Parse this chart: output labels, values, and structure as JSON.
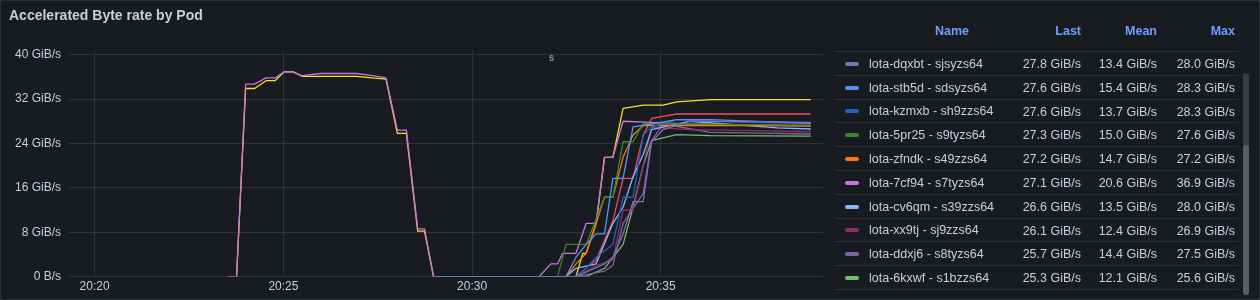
{
  "chart_data": [
    {
      "type": "line",
      "title": "Accelerated Byte rate by Pod",
      "annotations": [
        "s"
      ],
      "xlim": [
        20.322,
        20.655
      ],
      "ylim": [
        0,
        40.8
      ],
      "xticks": [
        {
          "value": 20.3333,
          "label": "20:20"
        },
        {
          "value": 20.4167,
          "label": "20:25"
        },
        {
          "value": 20.5,
          "label": "20:30"
        },
        {
          "value": 20.5833,
          "label": "20:35"
        }
      ],
      "yticks": [
        {
          "value": 0,
          "label": "0 B/s"
        },
        {
          "value": 8,
          "label": "8 GiB/s"
        },
        {
          "value": 16,
          "label": "16 GiB/s"
        },
        {
          "value": 24,
          "label": "24 GiB/s"
        },
        {
          "value": 32,
          "label": "32 GiB/s"
        },
        {
          "value": 40,
          "label": "40 GiB/s"
        }
      ],
      "grid": true,
      "legend": "right",
      "series": [
        {
          "name": "lota-dqxbt - sjsyzs64",
          "color": "#806eb7",
          "x": [
            20.483,
            20.5459,
            20.5585,
            20.5622,
            20.5667,
            20.5711,
            20.5756,
            20.5793,
            20.5844,
            20.5963,
            20.6348,
            20.6496
          ],
          "values": [
            0,
            0,
            2.3,
            3.5,
            7.7,
            13.5,
            13.5,
            24.3,
            26.5,
            28.0,
            27.9,
            27.8
          ]
        },
        {
          "name": "lota-stb5d - sdsyzs64",
          "color": "#5794f2",
          "x": [
            20.483,
            20.5415,
            20.5459,
            20.5504,
            20.5548,
            20.5585,
            20.5622,
            20.5667,
            20.5711,
            20.5793,
            20.5904,
            20.6052,
            20.6496
          ],
          "values": [
            0,
            0,
            3.5,
            5.8,
            7.7,
            7.7,
            17.7,
            17.7,
            27.0,
            27.5,
            28.3,
            28.3,
            27.6
          ]
        },
        {
          "name": "lota-kzmxb - sh9zzs64",
          "color": "#1f60c4",
          "x": [
            20.483,
            20.5459,
            20.5504,
            20.5548,
            20.5622,
            20.5667,
            20.5711,
            20.5756,
            20.5793,
            20.5904,
            20.62,
            20.6496
          ],
          "values": [
            0,
            0,
            1.5,
            3.5,
            5.8,
            14.3,
            14.3,
            25.5,
            27.0,
            28.3,
            27.8,
            27.6
          ]
        },
        {
          "name": "lota-5pr25 - s9tyzs64",
          "color": "#37872d",
          "x": [
            20.483,
            20.5378,
            20.5415,
            20.5504,
            20.5585,
            20.5622,
            20.5667,
            20.5711,
            20.5756,
            20.62,
            20.6496
          ],
          "values": [
            0,
            0,
            5.8,
            5.8,
            14.3,
            14.3,
            24.3,
            24.3,
            27.6,
            27.4,
            27.3
          ]
        },
        {
          "name": "lota-zfndk - s49zzs64",
          "color": "#ff780a",
          "x": [
            20.483,
            20.5415,
            20.5459,
            20.5504,
            20.5548,
            20.5585,
            20.5622,
            20.5667,
            20.5711,
            20.5756,
            20.6496
          ],
          "values": [
            0,
            0,
            2.3,
            4.2,
            9.6,
            14.3,
            14.3,
            21.5,
            25.5,
            27.2,
            27.2
          ]
        },
        {
          "name": "lota-7cf94 - s7tyzs64",
          "color": "#c875dd",
          "x": [
            20.392,
            20.396,
            20.4,
            20.404,
            20.409,
            20.413,
            20.417,
            20.421,
            20.425,
            20.433,
            20.449,
            20.456,
            20.462,
            20.467,
            20.471,
            20.476,
            20.479,
            20.483,
            20.5296,
            20.5348,
            20.5378,
            20.54,
            20.5459,
            20.5504,
            20.5548,
            20.5585,
            20.5622,
            20.5667,
            20.5793,
            20.5963,
            20.62,
            20.6496
          ],
          "values": [
            0,
            0,
            34.7,
            34.7,
            35.8,
            35.8,
            36.9,
            36.9,
            36.2,
            36.6,
            36.6,
            36.2,
            35.8,
            26.4,
            26.4,
            8.6,
            8.6,
            0,
            0,
            2.3,
            2.3,
            4.2,
            4.2,
            9.6,
            9.6,
            21.5,
            21.5,
            28.0,
            27.8,
            27.5,
            27.3,
            27.1
          ]
        },
        {
          "name": "lota-cv6qm - s39zzs64",
          "color": "#8ab8ff",
          "x": [
            20.483,
            20.5415,
            20.5459,
            20.5548,
            20.5622,
            20.5667,
            20.5711,
            20.5756,
            20.5793,
            20.5963,
            20.6348,
            20.6496
          ],
          "values": [
            0,
            0,
            1.5,
            2.3,
            9.6,
            12.5,
            18,
            22,
            26.5,
            28.0,
            26.8,
            26.6
          ]
        },
        {
          "name": "lota-xx9tj - sj9zzs64",
          "color": "#8e2e6b",
          "x": [
            20.483,
            20.5459,
            20.5548,
            20.5622,
            20.5667,
            20.5711,
            20.5756,
            20.5793,
            20.5963,
            20.6496
          ],
          "values": [
            0,
            0,
            2.0,
            3.0,
            12,
            12,
            20,
            26.9,
            26.5,
            26.1
          ]
        },
        {
          "name": "lota-ddxj6 - s8tyzs64",
          "color": "#7d64a8",
          "x": [
            20.483,
            20.5459,
            20.5585,
            20.5622,
            20.5667,
            20.5756,
            20.5793,
            20.5844,
            20.6052,
            20.6496
          ],
          "values": [
            0,
            0,
            1.0,
            2.0,
            9.6,
            15,
            24.5,
            27.5,
            26.0,
            25.7
          ]
        },
        {
          "name": "lota-6kxwf - s1bzzs64",
          "color": "#73bf69",
          "x": [
            20.483,
            20.5504,
            20.5585,
            20.5667,
            20.5711,
            20.5756,
            20.5793,
            20.5904,
            20.6052,
            20.6496
          ],
          "values": [
            0,
            0,
            1.5,
            5.8,
            12.5,
            20,
            24.5,
            25.6,
            25.4,
            25.3
          ]
        },
        {
          "color": "#fade2a",
          "x": [
            20.396,
            20.4,
            20.404,
            20.409,
            20.413,
            20.417,
            20.421,
            20.425,
            20.449,
            20.456,
            20.462,
            20.467,
            20.471,
            20.476,
            20.479,
            20.483,
            20.5459,
            20.5489,
            20.5504,
            20.5548,
            20.5585,
            20.5622,
            20.5667,
            20.5756,
            20.5844,
            20.5904,
            20.6052,
            20.6496
          ],
          "values": [
            0,
            33.9,
            33.9,
            35.3,
            35.3,
            36.9,
            36.9,
            36.1,
            36.1,
            35.8,
            35.6,
            25.8,
            25.8,
            8.2,
            8.2,
            0,
            0,
            4.2,
            4.2,
            9.6,
            21.5,
            21.5,
            30.3,
            30.9,
            30.9,
            31.5,
            31.9,
            31.9
          ]
        },
        {
          "color": "#f2495c",
          "x": [
            20.483,
            20.5459,
            20.5548,
            20.5622,
            20.5667,
            20.5711,
            20.5756,
            20.5793,
            20.5904,
            20.6496
          ],
          "values": [
            0,
            0,
            3.0,
            10,
            17.7,
            17.7,
            25.5,
            28.5,
            29.3,
            29.3
          ]
        }
      ]
    },
    {
      "type": "other",
      "categories": [
        "Name",
        "Last",
        "Mean",
        "Max"
      ],
      "cell_labels": [
        [
          "27.8 GiB/s",
          "13.4 GiB/s",
          "28.0 GiB/s"
        ],
        [
          "27.6 GiB/s",
          "15.4 GiB/s",
          "28.3 GiB/s"
        ],
        [
          "27.6 GiB/s",
          "13.7 GiB/s",
          "28.3 GiB/s"
        ],
        [
          "27.3 GiB/s",
          "15.0 GiB/s",
          "27.6 GiB/s"
        ],
        [
          "27.2 GiB/s",
          "14.7 GiB/s",
          "27.2 GiB/s"
        ],
        [
          "27.1 GiB/s",
          "20.6 GiB/s",
          "36.9 GiB/s"
        ],
        [
          "26.6 GiB/s",
          "13.5 GiB/s",
          "28.0 GiB/s"
        ],
        [
          "26.1 GiB/s",
          "12.4 GiB/s",
          "26.9 GiB/s"
        ],
        [
          "25.7 GiB/s",
          "14.4 GiB/s",
          "27.5 GiB/s"
        ],
        [
          "25.3 GiB/s",
          "12.1 GiB/s",
          "25.6 GiB/s"
        ]
      ]
    }
  ]
}
